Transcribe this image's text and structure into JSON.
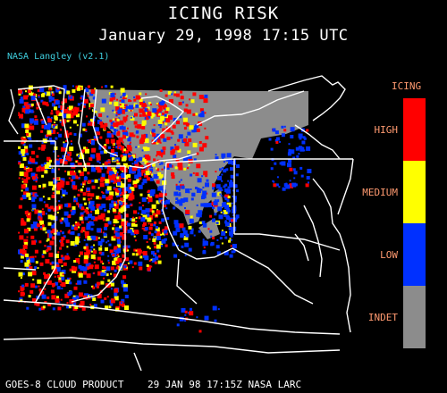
{
  "header": {
    "title": "ICING RISK",
    "subtitle": "January 29, 1998 17:15 UTC",
    "credit": "NASA Langley (v2.1)"
  },
  "footer": {
    "text": "GOES-8 CLOUD PRODUCT    29 JAN 98 17:15Z NASA LARC"
  },
  "legend": {
    "title": "ICING",
    "levels": [
      {
        "label": "HIGH",
        "color": "#ff0000"
      },
      {
        "label": "MEDIUM",
        "color": "#ffff00"
      },
      {
        "label": "LOW",
        "color": "#0030ff"
      },
      {
        "label": "INDET",
        "color": "#8c8c8c"
      }
    ]
  },
  "colors": {
    "background": "#000000",
    "borders": "#ffffff",
    "high": "#ff0000",
    "medium": "#ffff00",
    "low": "#0030ff",
    "indet": "#8c8c8c"
  }
}
